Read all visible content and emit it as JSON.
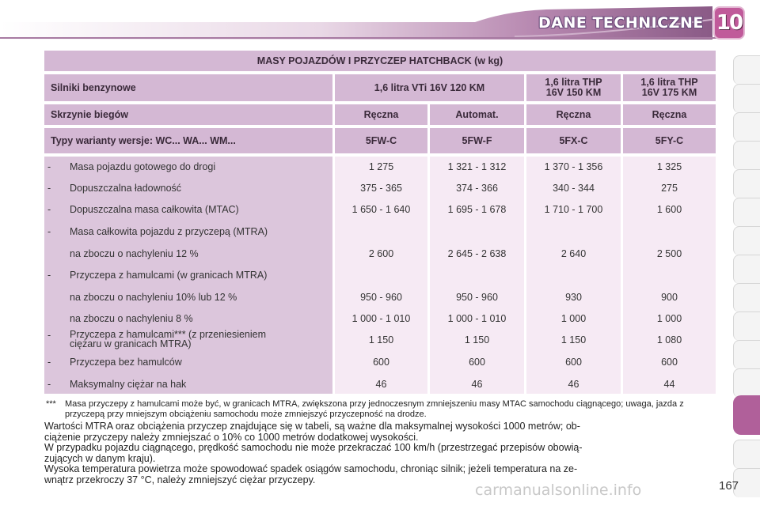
{
  "header": {
    "title": "DANE TECHNICZNE",
    "chapter": "10"
  },
  "table": {
    "title": "MASY POJAZDÓW I PRZYCZEP HATCHBACK (w kg)",
    "engines_label": "Silniki benzynowe",
    "engines": [
      "1,6 litra VTi 16V 120 KM",
      "1,6 litra THP\n16V 150 KM",
      "1,6 litra THP\n16V 175 KM"
    ],
    "gearbox_label": "Skrzynie biegów",
    "gearboxes": [
      "Ręczna",
      "Automat.",
      "Ręczna",
      "Ręczna"
    ],
    "types_label": "Typy warianty wersje: WC... WA... WM...",
    "types": [
      "5FW-C",
      "5FW-F",
      "5FX-C",
      "5FY-C"
    ],
    "rows": [
      {
        "dash": "-",
        "label": "Masa pojazdu gotowego do drogi",
        "values": [
          "1 275",
          "1 321 - 1 312",
          "1 370 - 1 356",
          "1 325"
        ]
      },
      {
        "dash": "-",
        "label": "Dopuszczalna ładowność",
        "values": [
          "375 - 365",
          "374 - 366",
          "340 - 344",
          "275"
        ]
      },
      {
        "dash": "-",
        "label": "Dopuszczalna masa całkowita (MTAC)",
        "values": [
          "1 650 - 1 640",
          "1 695 - 1 678",
          "1 710 - 1 700",
          "1 600"
        ]
      },
      {
        "dash": "-",
        "label": "Masa całkowita pojazdu z przyczepą (MTRA)",
        "values": [
          "",
          "",
          "",
          ""
        ]
      },
      {
        "dash": "",
        "label": "na zboczu o nachyleniu 12 %",
        "values": [
          "2 600",
          "2 645 - 2 638",
          "2 640",
          "2 500"
        ]
      },
      {
        "dash": "-",
        "label": "Przyczepa z hamulcami (w granicach MTRA)",
        "values": [
          "",
          "",
          "",
          ""
        ]
      },
      {
        "dash": "",
        "label": "na zboczu o nachyleniu 10% lub 12 %",
        "values": [
          "950 - 960",
          "950 - 960",
          "930",
          "900"
        ]
      },
      {
        "dash": "",
        "label": "na zboczu o nachyleniu 8 %",
        "values": [
          "1 000 - 1 010",
          "1 000 - 1 010",
          "1 000",
          "1 000"
        ]
      },
      {
        "dash": "-",
        "label": "Przyczepa z hamulcami*** (z przeniesieniem\nciężaru w granicach MTRA)",
        "values": [
          "1 150",
          "1 150",
          "1 150",
          "1 080"
        ]
      },
      {
        "dash": "-",
        "label": "Przyczepa bez hamulców",
        "values": [
          "600",
          "600",
          "600",
          "600"
        ]
      },
      {
        "dash": "-",
        "label": "Maksymalny ciężar na hak",
        "values": [
          "46",
          "46",
          "46",
          "44"
        ]
      }
    ]
  },
  "footnote_mark": "***",
  "footnote": "Masa przyczepy z hamulcami może być, w granicach MTRA, zwiększona przy jednoczesnym zmniejszeniu masy MTAC samochodu ciągnącego; uwaga, jazda z przyczepą przy mniejszym obciążeniu samochodu może zmniejszyć przyczepność na drodze.",
  "paragraph_lines": [
    "Wartości MTRA oraz obciążenia przyczep znajdujące się w tabeli, są ważne dla maksymalnej wysokości 1000 metrów; ob-",
    "ciążenie przyczepy należy zmniejszać o 10% co 1000 metrów dodatkowej wysokości.",
    "W przypadku pojazdu ciągnącego, prędkość samochodu nie może przekraczać 100 km/h (przestrzegać przepisów obowią-",
    "zujących w danym kraju).",
    "Wysoka temperatura powietrza może spowodować spadek osiągów samochodu, chroniąc silnik; jeżeli temperatura na ze-",
    "wnątrz przekroczy 37 °C, należy zmniejszyć ciężar przyczepy."
  ],
  "page_number": "167",
  "watermark": "carmanualsonline.info",
  "colors": {
    "accent": "#b0609a",
    "header_cell": "#d4b8d4",
    "label_column": "#dcc6dc",
    "data_column": "#f6eaf4"
  }
}
